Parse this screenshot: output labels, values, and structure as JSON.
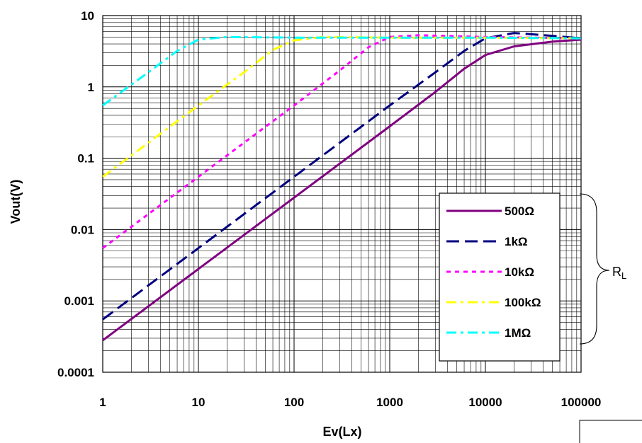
{
  "chart_data": {
    "type": "line",
    "xscale": "log",
    "yscale": "log",
    "grid": true,
    "xlabel": "Ev(Lx)",
    "ylabel": "Vout(V)",
    "xlim": [
      1,
      100000
    ],
    "ylim": [
      0.0001,
      10
    ],
    "x_ticks": [
      "1",
      "10",
      "100",
      "1000",
      "10000",
      "100000"
    ],
    "y_ticks": [
      "10",
      "1",
      "0.1",
      "0.01",
      "0.001",
      "0.0001"
    ],
    "legend_position": "right",
    "legend_group_label": "R",
    "legend_group_label_sub": "L",
    "series": [
      {
        "name": "500Ω",
        "color": "#800080",
        "style": "solid",
        "points": [
          [
            1,
            0.00028
          ],
          [
            10,
            0.0028
          ],
          [
            100,
            0.028
          ],
          [
            1000,
            0.28
          ],
          [
            3000,
            0.85
          ],
          [
            6000,
            1.8
          ],
          [
            10000,
            2.8
          ],
          [
            20000,
            3.7
          ],
          [
            50000,
            4.3
          ],
          [
            100000,
            4.6
          ]
        ]
      },
      {
        "name": "1kΩ",
        "color": "#000080",
        "style": "dash",
        "points": [
          [
            1,
            0.00055
          ],
          [
            10,
            0.0055
          ],
          [
            100,
            0.055
          ],
          [
            1000,
            0.55
          ],
          [
            3000,
            1.6
          ],
          [
            6000,
            3.2
          ],
          [
            10000,
            4.8
          ],
          [
            20000,
            5.7
          ],
          [
            50000,
            5.2
          ],
          [
            100000,
            4.8
          ]
        ]
      },
      {
        "name": "10kΩ",
        "color": "#ff00ff",
        "style": "dot",
        "points": [
          [
            1,
            0.0055
          ],
          [
            10,
            0.055
          ],
          [
            100,
            0.55
          ],
          [
            300,
            1.7
          ],
          [
            600,
            3.6
          ],
          [
            1000,
            5.0
          ],
          [
            2000,
            5.3
          ],
          [
            10000,
            5.0
          ],
          [
            100000,
            4.8
          ]
        ]
      },
      {
        "name": "100kΩ",
        "color": "#ffff00",
        "style": "dashdot",
        "points": [
          [
            1,
            0.055
          ],
          [
            10,
            0.55
          ],
          [
            30,
            1.6
          ],
          [
            60,
            3.3
          ],
          [
            100,
            4.5
          ],
          [
            200,
            5.0
          ],
          [
            1000,
            4.9
          ],
          [
            10000,
            4.9
          ],
          [
            100000,
            4.8
          ]
        ]
      },
      {
        "name": "1MΩ",
        "color": "#00ffff",
        "style": "dashdot",
        "points": [
          [
            1,
            0.55
          ],
          [
            3,
            1.6
          ],
          [
            6,
            3.2
          ],
          [
            10,
            4.6
          ],
          [
            20,
            5.0
          ],
          [
            100,
            4.9
          ],
          [
            1000,
            4.9
          ],
          [
            10000,
            4.9
          ],
          [
            100000,
            4.8
          ]
        ]
      }
    ]
  }
}
